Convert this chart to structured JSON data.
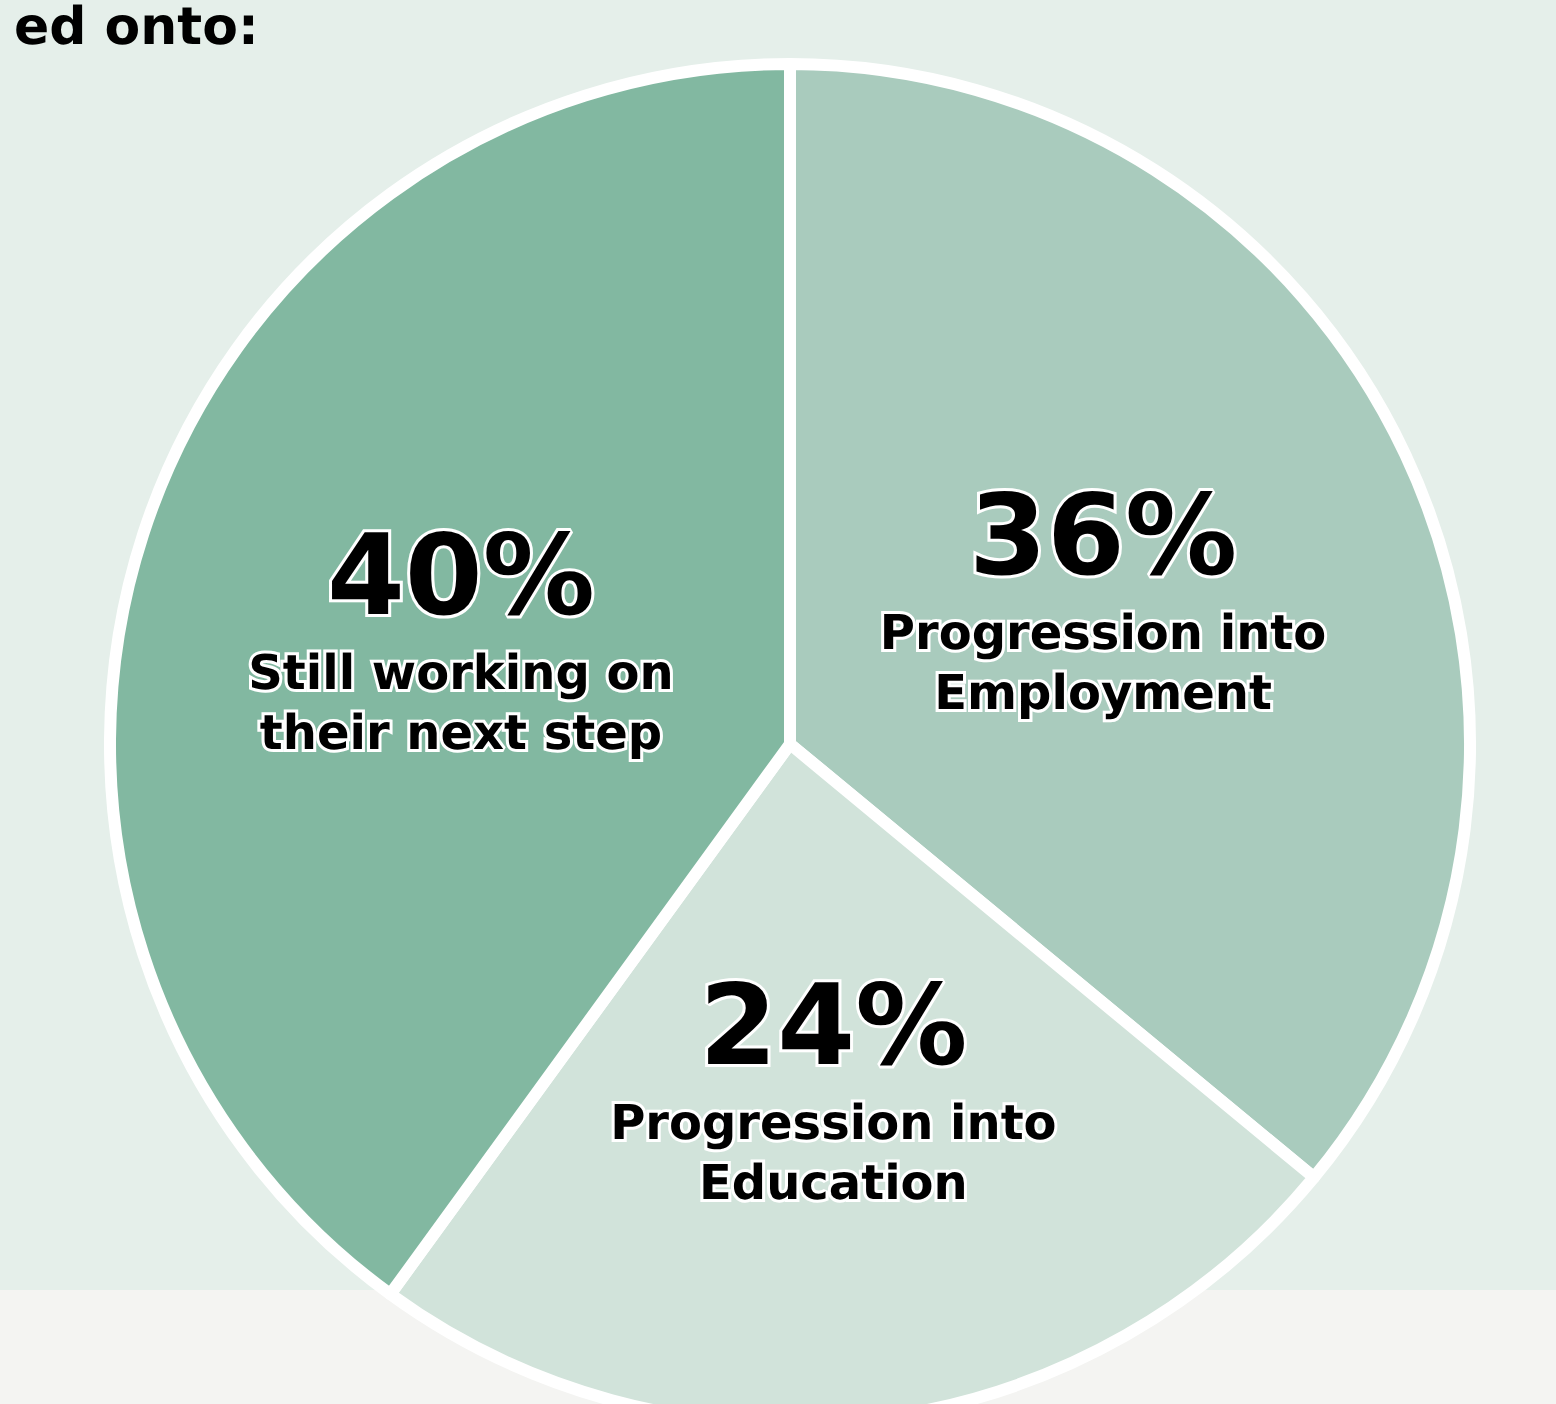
{
  "chart_data": {
    "type": "pie",
    "title": "ed onto:",
    "categories": [
      "Progression into\nEmployment",
      "Progression into\nEducation",
      "Still working on\ntheir next step"
    ],
    "values": [
      36,
      24,
      40
    ],
    "value_labels": [
      "36%",
      "24%",
      "40%"
    ],
    "colors": [
      "#a9cbbd",
      "#d1e3da",
      "#82b8a1"
    ],
    "legend": false
  }
}
